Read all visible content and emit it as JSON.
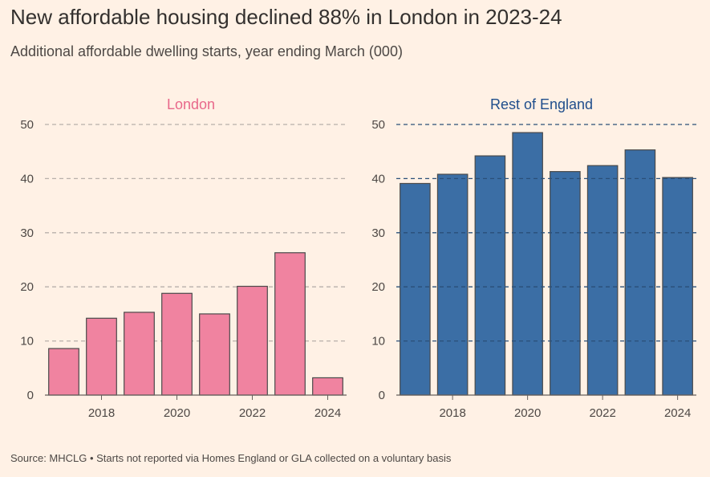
{
  "header": {
    "title": "New affordable housing declined 88% in London in 2023-24",
    "subtitle": "Additional affordable dwelling starts, year ending March (000)"
  },
  "footer": {
    "source": "Source: MHCLG • Starts not reported via Homes England or GLA collected on a voluntary basis"
  },
  "colors": {
    "background": "#fff1e5",
    "london": "#f083a0",
    "london_title": "#e8688a",
    "rest_of_england": "#3b6ea5",
    "rest_title": "#1f4e8c",
    "bar_outline": "#4a4a4a",
    "grid": "#b8b0aa"
  },
  "chart_data": [
    {
      "type": "bar",
      "title": "London",
      "x": [
        2017,
        2018,
        2019,
        2020,
        2021,
        2022,
        2023,
        2024
      ],
      "values": [
        8.6,
        14.2,
        15.3,
        18.8,
        15.0,
        20.1,
        26.3,
        3.2
      ],
      "xticks": [
        "2018",
        "2020",
        "2022",
        "2024"
      ],
      "yticks": [
        "0",
        "10",
        "20",
        "30",
        "40",
        "50"
      ],
      "ylim": [
        0,
        50
      ],
      "grid": true
    },
    {
      "type": "bar",
      "title": "Rest of England",
      "x": [
        2017,
        2018,
        2019,
        2020,
        2021,
        2022,
        2023,
        2024
      ],
      "values": [
        39.1,
        40.8,
        44.2,
        48.5,
        41.3,
        42.4,
        45.3,
        40.2
      ],
      "xticks": [
        "2018",
        "2020",
        "2022",
        "2024"
      ],
      "yticks": [
        "0",
        "10",
        "20",
        "30",
        "40",
        "50"
      ],
      "ylim": [
        0,
        50
      ],
      "grid": true
    }
  ]
}
